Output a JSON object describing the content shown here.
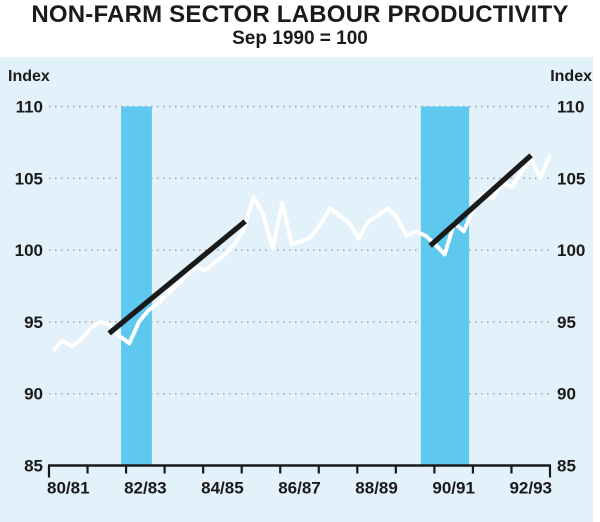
{
  "colors": {
    "page_background": "#ffffff",
    "panel_background": "#e3f1fa",
    "recession_band": "#5fc8ee",
    "series_line": "#ffffff",
    "trend_line": "#1a1a1a",
    "axis": "#1a1a1a",
    "gridline": "#9aa3ab",
    "text": "#1a1a1a"
  },
  "chart_data": {
    "type": "line",
    "title": "NON-FARM SECTOR LABOUR PRODUCTIVITY",
    "subtitle": "Sep 1990 = 100",
    "ylabel_left": "Index",
    "ylabel_right": "Index",
    "ylim": [
      85,
      110
    ],
    "yticks": [
      85,
      90,
      95,
      100,
      105,
      110
    ],
    "gridlines_at": [
      90,
      95,
      100,
      105,
      110
    ],
    "grid_style": "dotted",
    "x_axis": {
      "unit": "financial years starting July 1980",
      "range_years": [
        0,
        13
      ],
      "tick_every_year": 1,
      "labels": [
        "80/81",
        "82/83",
        "84/85",
        "86/87",
        "88/89",
        "90/91",
        "92/93"
      ],
      "label_positions_years": [
        0.5,
        2.5,
        4.5,
        6.5,
        8.5,
        10.5,
        12.5
      ]
    },
    "series": [
      {
        "name": "Non-farm sector labour productivity (quarterly index)",
        "style": "white-line",
        "t_start_years": 0.1,
        "t_step_years": 0.248,
        "values": [
          93.0,
          93.7,
          93.3,
          93.8,
          94.6,
          95.0,
          94.8,
          94.0,
          93.5,
          95.0,
          95.8,
          96.3,
          97.0,
          97.6,
          98.2,
          98.8,
          98.6,
          99.2,
          99.7,
          100.4,
          101.5,
          103.7,
          102.5,
          100.1,
          103.3,
          100.4,
          100.6,
          100.9,
          101.8,
          102.9,
          102.4,
          101.9,
          100.8,
          102.0,
          102.4,
          102.9,
          102.3,
          101.0,
          101.3,
          101.0,
          100.4,
          99.7,
          101.9,
          101.3,
          102.9,
          103.9,
          103.6,
          104.7,
          104.4,
          105.4,
          106.4,
          105.0,
          106.6
        ]
      }
    ],
    "trend_lines": [
      {
        "name": "trend-early-1980s",
        "x1_years": 1.56,
        "y1": 94.2,
        "x2_years": 5.09,
        "y2": 102.0
      },
      {
        "name": "trend-early-1990s",
        "x1_years": 9.89,
        "y1": 100.3,
        "x2_years": 12.51,
        "y2": 106.6
      }
    ],
    "recession_bands": [
      {
        "from_years": 1.87,
        "to_years": 2.67
      },
      {
        "from_years": 9.65,
        "to_years": 10.9
      }
    ]
  }
}
